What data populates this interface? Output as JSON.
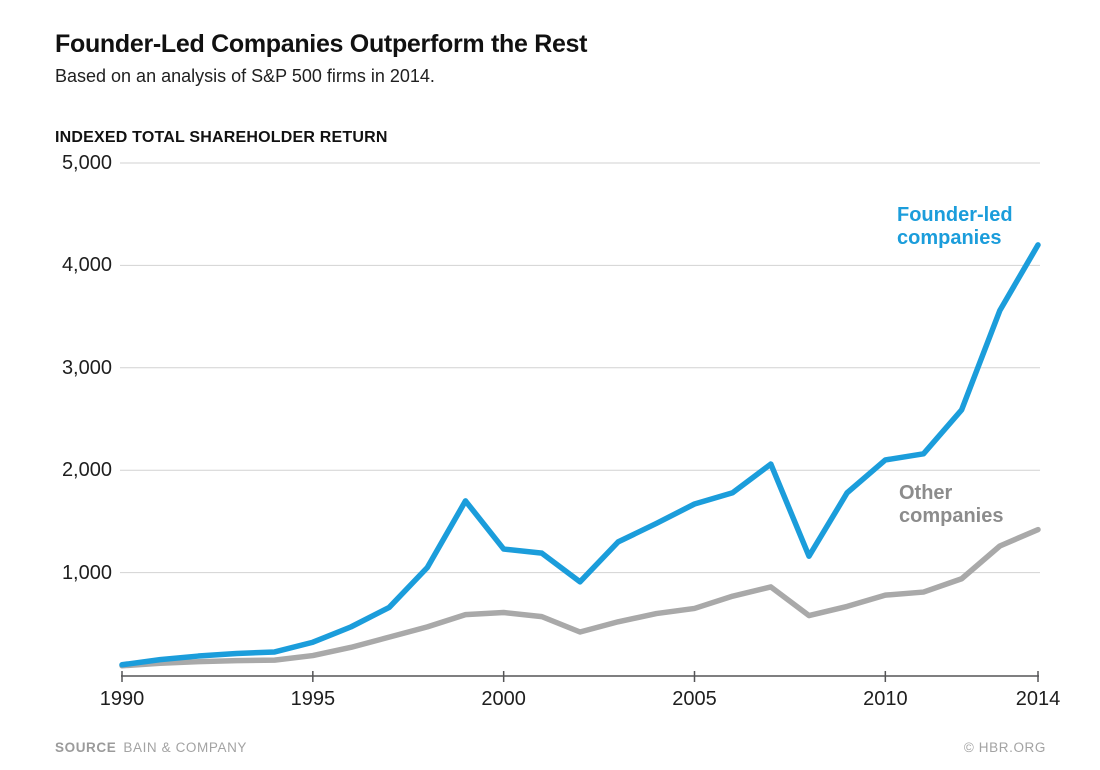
{
  "header": {
    "title": "Founder-Led Companies Outperform the Rest",
    "subtitle": "Based on an analysis of S&P 500 firms in 2014."
  },
  "chart_data": {
    "type": "line",
    "title": "INDEXED TOTAL SHAREHOLDER RETURN",
    "xlabel": "",
    "ylabel": "Indexed total shareholder return",
    "xlim": [
      1990,
      2014
    ],
    "ylim": [
      0,
      5000
    ],
    "grid": "horizontal",
    "legend_position": "inline-annotations",
    "x": [
      1990,
      1991,
      1992,
      1993,
      1994,
      1995,
      1996,
      1997,
      1998,
      1999,
      2000,
      2001,
      2002,
      2003,
      2004,
      2005,
      2006,
      2007,
      2008,
      2009,
      2010,
      2011,
      2012,
      2013,
      2014
    ],
    "series": [
      {
        "name": "Founder-led companies",
        "color": "#1B9DDB",
        "values": [
          100,
          150,
          185,
          210,
          225,
          320,
          470,
          660,
          1050,
          1700,
          1230,
          1190,
          910,
          1300,
          1480,
          1670,
          1780,
          2060,
          1160,
          1780,
          2100,
          2160,
          2590,
          3560,
          4200
        ]
      },
      {
        "name": "Other companies",
        "color": "#A9A9A9",
        "values": [
          90,
          115,
          130,
          140,
          145,
          190,
          270,
          370,
          470,
          590,
          610,
          570,
          420,
          520,
          600,
          650,
          770,
          860,
          580,
          670,
          780,
          810,
          940,
          1260,
          1420
        ]
      }
    ],
    "yticks": [
      {
        "value": 5000,
        "label": "5,000"
      },
      {
        "value": 4000,
        "label": "4,000"
      },
      {
        "value": 3000,
        "label": "3,000"
      },
      {
        "value": 2000,
        "label": "2,000"
      },
      {
        "value": 1000,
        "label": "1,000"
      }
    ],
    "xticks": [
      {
        "value": 1990,
        "label": "1990"
      },
      {
        "value": 1995,
        "label": "1995"
      },
      {
        "value": 2000,
        "label": "2000"
      },
      {
        "value": 2005,
        "label": "2005"
      },
      {
        "value": 2010,
        "label": "2010"
      },
      {
        "value": 2014,
        "label": "2014"
      }
    ],
    "annotations": [
      {
        "id": "founder",
        "text": "Founder-led\ncompanies",
        "color": "#1B9DDB"
      },
      {
        "id": "other",
        "text": "Other\ncompanies",
        "color": "#8C8C8C"
      }
    ],
    "colors": {
      "gridline": "#d2d2d2",
      "axis": "#555557"
    }
  },
  "footer": {
    "source_label": "SOURCE",
    "source_value": "BAIN & COMPANY",
    "credit": "© HBR.ORG"
  }
}
